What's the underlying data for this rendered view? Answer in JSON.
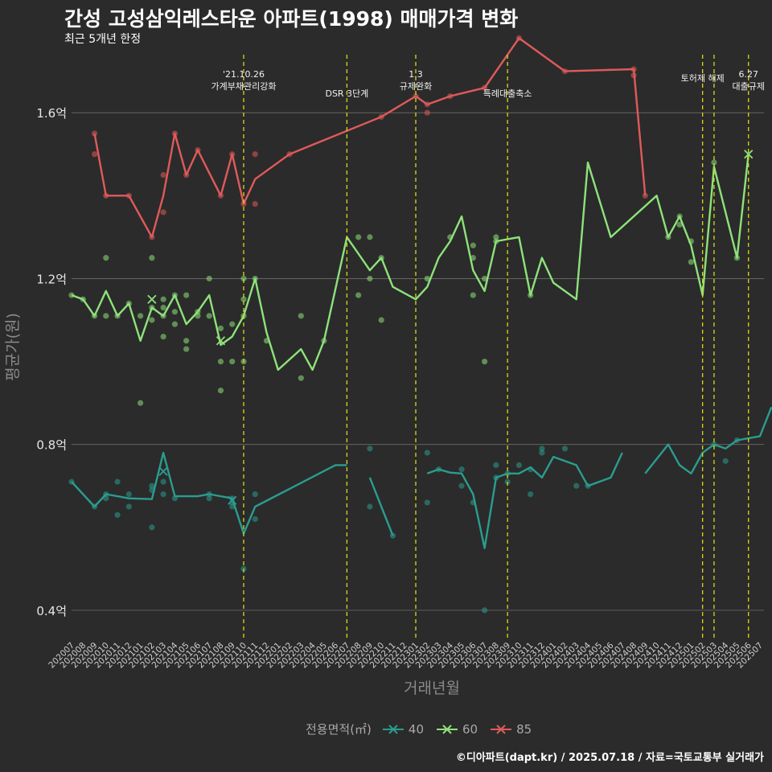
{
  "title": "간성 고성삼익레스타운 아파트(1998) 매매가격 변화",
  "subtitle": "최근 5개년 한정",
  "caption": "©디아파트(dapt.kr) / 2025.07.18 / 자료=국토교통부 실거래가",
  "chart_data": {
    "type": "line",
    "xlabel": "거래년월",
    "ylabel": "평균가(원)",
    "ylim": [
      0.33,
      1.74
    ],
    "yticks": [
      0.4,
      0.8,
      1.2,
      1.6
    ],
    "ytick_labels": [
      "0.4억",
      "0.8억",
      "1.2억",
      "1.6억"
    ],
    "x": [
      "202007",
      "202008",
      "202009",
      "202010",
      "202011",
      "202012",
      "202101",
      "202102",
      "202103",
      "202104",
      "202105",
      "202106",
      "202107",
      "202108",
      "202109",
      "202110",
      "202111",
      "202112",
      "202201",
      "202202",
      "202203",
      "202204",
      "202205",
      "202206",
      "202207",
      "202208",
      "202209",
      "202210",
      "202211",
      "202212",
      "202301",
      "202302",
      "202303",
      "202304",
      "202305",
      "202306",
      "202307",
      "202308",
      "202309",
      "202310",
      "202311",
      "202312",
      "202401",
      "202402",
      "202403",
      "202404",
      "202405",
      "202406",
      "202407",
      "202408",
      "202409",
      "202410",
      "202411",
      "202412",
      "202501",
      "202502",
      "202503",
      "202504",
      "202505",
      "202506",
      "202507"
    ],
    "grid": true,
    "legend": {
      "title": "전용면적(㎡)",
      "position": "bottom",
      "items": [
        {
          "label": "40",
          "color": "#2a9d8f"
        },
        {
          "label": "60",
          "color": "#8ee27a"
        },
        {
          "label": "85",
          "color": "#e05a5a"
        }
      ]
    },
    "series": [
      {
        "name": "40",
        "color": "#2a9d8f",
        "line": [
          [
            [
              0,
              0.71
            ],
            [
              2,
              0.65
            ],
            [
              3,
              0.68
            ],
            [
              5,
              0.67
            ],
            [
              7,
              0.668
            ],
            [
              8,
              0.78
            ],
            [
              9,
              0.675
            ],
            [
              11,
              0.675
            ],
            [
              12,
              0.68
            ],
            [
              14,
              0.67
            ],
            [
              15,
              0.585
            ],
            [
              16,
              0.65
            ],
            [
              23,
              0.75
            ],
            [
              24,
              0.75
            ]
          ],
          [
            [
              26,
              0.72
            ],
            [
              28,
              0.58
            ]
          ],
          [
            [
              31,
              0.73
            ],
            [
              32,
              0.74
            ],
            [
              33,
              0.732
            ],
            [
              34,
              0.73
            ],
            [
              35,
              0.68
            ],
            [
              36,
              0.55
            ],
            [
              37,
              0.72
            ],
            [
              38,
              0.73
            ],
            [
              39,
              0.73
            ],
            [
              40,
              0.745
            ],
            [
              41,
              0.72
            ],
            [
              42,
              0.77
            ],
            [
              44,
              0.75
            ],
            [
              45,
              0.7
            ],
            [
              47,
              0.72
            ],
            [
              48,
              0.78
            ]
          ],
          [
            [
              50,
              0.73
            ],
            [
              52,
              0.8
            ],
            [
              53,
              0.75
            ],
            [
              54,
              0.73
            ],
            [
              55,
              0.78
            ],
            [
              56,
              0.8
            ],
            [
              57,
              0.79
            ],
            [
              58,
              0.81
            ],
            [
              60,
              0.82
            ],
            [
              61,
              0.89
            ]
          ]
        ],
        "points": [
          [
            0,
            0.71
          ],
          [
            2,
            0.65
          ],
          [
            3,
            0.67
          ],
          [
            3,
            0.68
          ],
          [
            4,
            0.71
          ],
          [
            4,
            0.63
          ],
          [
            5,
            0.68
          ],
          [
            5,
            0.65
          ],
          [
            7,
            0.69
          ],
          [
            7,
            0.7
          ],
          [
            7,
            0.6
          ],
          [
            8,
            0.68
          ],
          [
            8,
            0.71
          ],
          [
            9,
            0.67
          ],
          [
            12,
            0.67
          ],
          [
            12,
            0.68
          ],
          [
            14,
            0.65
          ],
          [
            14,
            0.66
          ],
          [
            14,
            0.67
          ],
          [
            15,
            0.5
          ],
          [
            16,
            0.68
          ],
          [
            16,
            0.62
          ],
          [
            26,
            0.65
          ],
          [
            26,
            0.79
          ],
          [
            28,
            0.58
          ],
          [
            31,
            0.78
          ],
          [
            31,
            0.66
          ],
          [
            32,
            0.74
          ],
          [
            34,
            0.74
          ],
          [
            34,
            0.7
          ],
          [
            35,
            0.66
          ],
          [
            36,
            0.4
          ],
          [
            37,
            0.75
          ],
          [
            37,
            0.72
          ],
          [
            38,
            0.73
          ],
          [
            38,
            0.71
          ],
          [
            39,
            0.75
          ],
          [
            40,
            0.68
          ],
          [
            40,
            0.74
          ],
          [
            41,
            0.78
          ],
          [
            41,
            0.79
          ],
          [
            43,
            0.79
          ],
          [
            44,
            0.7
          ],
          [
            45,
            0.7
          ],
          [
            56,
            0.8
          ],
          [
            57,
            0.76
          ],
          [
            58,
            0.81
          ]
        ],
        "markers": [
          [
            8,
            0.735
          ],
          [
            14,
            0.665
          ]
        ]
      },
      {
        "name": "60",
        "color": "#8ee27a",
        "line": [
          [
            [
              0,
              1.16
            ],
            [
              1,
              1.15
            ],
            [
              2,
              1.11
            ],
            [
              3,
              1.17
            ],
            [
              4,
              1.11
            ],
            [
              5,
              1.14
            ],
            [
              6,
              1.05
            ],
            [
              7,
              1.13
            ],
            [
              8,
              1.11
            ],
            [
              9,
              1.16
            ],
            [
              10,
              1.09
            ],
            [
              11,
              1.12
            ],
            [
              12,
              1.16
            ],
            [
              13,
              1.04
            ],
            [
              14,
              1.06
            ],
            [
              15,
              1.11
            ],
            [
              16,
              1.2
            ],
            [
              17,
              1.07
            ],
            [
              18,
              0.98
            ],
            [
              20,
              1.03
            ],
            [
              21,
              0.98
            ],
            [
              22,
              1.05
            ],
            [
              24,
              1.3
            ],
            [
              25,
              1.26
            ],
            [
              26,
              1.22
            ],
            [
              27,
              1.25
            ],
            [
              28,
              1.18
            ],
            [
              30,
              1.15
            ],
            [
              31,
              1.18
            ],
            [
              32,
              1.25
            ],
            [
              33,
              1.29
            ],
            [
              34,
              1.35
            ],
            [
              35,
              1.22
            ],
            [
              36,
              1.17
            ],
            [
              37,
              1.29
            ],
            [
              39,
              1.3
            ],
            [
              40,
              1.16
            ],
            [
              41,
              1.25
            ],
            [
              42,
              1.19
            ],
            [
              44,
              1.15
            ],
            [
              45,
              1.48
            ],
            [
              47,
              1.3
            ],
            [
              51,
              1.4
            ],
            [
              52,
              1.3
            ],
            [
              53,
              1.35
            ],
            [
              54,
              1.28
            ],
            [
              55,
              1.16
            ],
            [
              56,
              1.47
            ],
            [
              58,
              1.25
            ],
            [
              59,
              1.5
            ]
          ]
        ],
        "points": [
          [
            0,
            1.16
          ],
          [
            1,
            1.15
          ],
          [
            2,
            1.11
          ],
          [
            3,
            1.25
          ],
          [
            3,
            1.11
          ],
          [
            4,
            1.11
          ],
          [
            5,
            1.14
          ],
          [
            6,
            1.11
          ],
          [
            6,
            0.9
          ],
          [
            7,
            1.1
          ],
          [
            7,
            1.13
          ],
          [
            7,
            1.25
          ],
          [
            8,
            1.15
          ],
          [
            8,
            1.13
          ],
          [
            8,
            1.11
          ],
          [
            8,
            1.06
          ],
          [
            9,
            1.16
          ],
          [
            9,
            1.12
          ],
          [
            9,
            1.09
          ],
          [
            10,
            1.16
          ],
          [
            10,
            1.05
          ],
          [
            10,
            1.03
          ],
          [
            11,
            1.12
          ],
          [
            11,
            1.11
          ],
          [
            12,
            1.2
          ],
          [
            12,
            1.11
          ],
          [
            13,
            1.08
          ],
          [
            13,
            0.93
          ],
          [
            13,
            1.0
          ],
          [
            14,
            1.09
          ],
          [
            14,
            1.0
          ],
          [
            15,
            1.2
          ],
          [
            15,
            1.15
          ],
          [
            15,
            1.11
          ],
          [
            15,
            1.0
          ],
          [
            16,
            1.2
          ],
          [
            17,
            1.05
          ],
          [
            20,
            0.96
          ],
          [
            20,
            1.11
          ],
          [
            22,
            1.05
          ],
          [
            25,
            1.3
          ],
          [
            25,
            1.16
          ],
          [
            26,
            1.3
          ],
          [
            26,
            1.2
          ],
          [
            27,
            1.1
          ],
          [
            27,
            1.25
          ],
          [
            31,
            1.2
          ],
          [
            33,
            1.3
          ],
          [
            35,
            1.25
          ],
          [
            35,
            1.28
          ],
          [
            35,
            1.16
          ],
          [
            36,
            1.2
          ],
          [
            36,
            1.0
          ],
          [
            37,
            1.3
          ],
          [
            37,
            1.29
          ],
          [
            40,
            1.16
          ],
          [
            52,
            1.3
          ],
          [
            53,
            1.35
          ],
          [
            53,
            1.33
          ],
          [
            54,
            1.29
          ],
          [
            54,
            1.24
          ],
          [
            56,
            1.48
          ],
          [
            58,
            1.25
          ]
        ],
        "markers": [
          [
            7,
            1.15
          ],
          [
            13,
            1.05
          ],
          [
            59,
            1.5
          ]
        ]
      },
      {
        "name": "85",
        "color": "#e05a5a",
        "line": [
          [
            [
              2,
              1.55
            ],
            [
              3,
              1.4
            ],
            [
              5,
              1.4
            ],
            [
              7,
              1.3
            ],
            [
              8,
              1.4
            ],
            [
              9,
              1.55
            ],
            [
              10,
              1.45
            ],
            [
              11,
              1.51
            ],
            [
              13,
              1.4
            ],
            [
              14,
              1.5
            ],
            [
              15,
              1.38
            ],
            [
              16,
              1.44
            ],
            [
              19,
              1.5
            ],
            [
              27,
              1.59
            ],
            [
              30,
              1.64
            ],
            [
              31,
              1.62
            ],
            [
              33,
              1.64
            ],
            [
              36,
              1.66
            ],
            [
              39,
              1.78
            ],
            [
              43,
              1.7
            ],
            [
              49,
              1.705
            ],
            [
              50,
              1.4
            ]
          ]
        ],
        "points": [
          [
            2,
            1.55
          ],
          [
            2,
            1.5
          ],
          [
            3,
            1.4
          ],
          [
            5,
            1.4
          ],
          [
            7,
            1.3
          ],
          [
            8,
            1.45
          ],
          [
            8,
            1.36
          ],
          [
            9,
            1.55
          ],
          [
            10,
            1.45
          ],
          [
            11,
            1.51
          ],
          [
            13,
            1.4
          ],
          [
            14,
            1.5
          ],
          [
            15,
            1.38
          ],
          [
            16,
            1.5
          ],
          [
            16,
            1.38
          ],
          [
            19,
            1.5
          ],
          [
            27,
            1.59
          ],
          [
            30,
            1.64
          ],
          [
            31,
            1.6
          ],
          [
            31,
            1.62
          ],
          [
            33,
            1.64
          ],
          [
            36,
            1.66
          ],
          [
            39,
            1.78
          ],
          [
            43,
            1.7
          ],
          [
            49,
            1.705
          ],
          [
            49,
            1.69
          ],
          [
            50,
            1.4
          ]
        ],
        "markers": []
      }
    ],
    "events": [
      {
        "x": 15,
        "lines": [
          "'21.10.26",
          "가계부채관리강화"
        ]
      },
      {
        "x": 24,
        "lines": [
          "DSR 3단계"
        ]
      },
      {
        "x": 30,
        "lines": [
          "1.3",
          "규제완화"
        ]
      },
      {
        "x": 38,
        "lines": [
          "특례대출축소"
        ]
      },
      {
        "x": 55,
        "lines": [
          "토허제 해제"
        ]
      },
      {
        "x": 56,
        "lines": []
      },
      {
        "x": 59,
        "lines": [
          "6.27",
          "대출규제"
        ]
      }
    ]
  }
}
